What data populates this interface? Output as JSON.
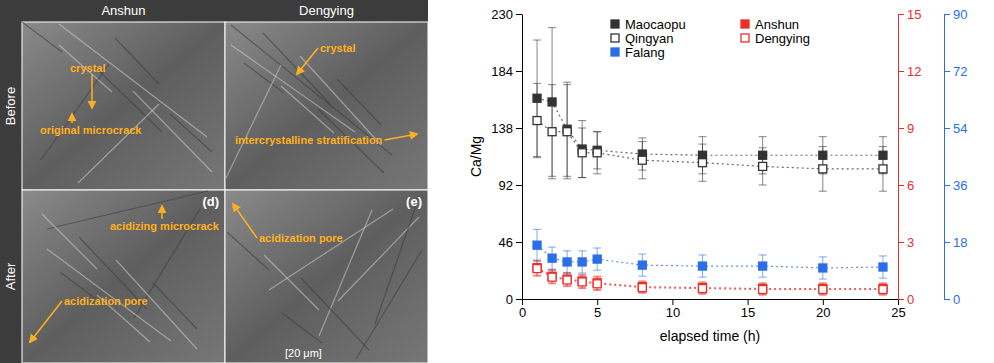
{
  "micrographs": {
    "columns": [
      "Anshun",
      "Dengying"
    ],
    "rows": [
      "Before",
      "After"
    ],
    "panels": [
      {
        "annotations": [
          "crystal",
          "original microcrack"
        ]
      },
      {
        "annotations": [
          "crystal",
          "intercrystalline stratification"
        ]
      },
      {
        "label": "(d)",
        "annotations": [
          "acidizing microcrack",
          "acidization pore"
        ]
      },
      {
        "label": "(e)",
        "annotations": [
          "acidization pore"
        ],
        "scale_bar": "[20 μm]"
      }
    ]
  },
  "chart_data": {
    "type": "line",
    "x_label": "elapsed time (h)",
    "y_label": "Ca/Mg",
    "x": [
      1,
      2,
      3,
      4,
      5,
      8,
      12,
      16,
      20,
      24
    ],
    "xlim": [
      0,
      25
    ],
    "xticks": [
      0,
      5,
      10,
      15,
      20,
      25
    ],
    "ylim": [
      0,
      230
    ],
    "yticks": [
      0,
      46,
      92,
      138,
      184,
      230
    ],
    "y2lim": [
      0,
      15
    ],
    "y2ticks": [
      0,
      3,
      6,
      9,
      12,
      15
    ],
    "y3lim": [
      0,
      90
    ],
    "y3ticks": [
      0,
      18,
      36,
      54,
      72,
      90
    ],
    "legend": "top",
    "series": [
      {
        "name": "Maocaopu",
        "color": "#333333",
        "marker": "square",
        "line_style": "dotted",
        "axis": "y",
        "values": [
          162,
          159,
          137,
          121,
          120,
          117,
          116,
          116,
          116,
          116
        ],
        "errors": [
          47,
          60,
          38,
          23,
          15,
          13,
          15,
          15,
          15,
          15
        ]
      },
      {
        "name": "Qingyan",
        "color": "#333333",
        "marker": "open-square",
        "line_style": "dotted",
        "axis": "y",
        "values": [
          144,
          135,
          135,
          118,
          118,
          112,
          110,
          107,
          105,
          105
        ],
        "errors": [
          30,
          38,
          38,
          20,
          17,
          15,
          15,
          15,
          18,
          18
        ]
      },
      {
        "name": "Anshun",
        "color": "#e8302a",
        "marker": "square",
        "line_style": "dotted",
        "axis": "y2",
        "values": [
          1.65,
          1.2,
          1.05,
          0.95,
          0.85,
          0.65,
          0.6,
          0.55,
          0.55,
          0.55
        ],
        "errors": [
          0.4,
          0.35,
          0.35,
          0.35,
          0.35,
          0.3,
          0.3,
          0.3,
          0.3,
          0.3
        ]
      },
      {
        "name": "Dengying",
        "color": "#e8302a",
        "marker": "open-square",
        "line_style": "dotted",
        "axis": "y2",
        "values": [
          1.6,
          1.15,
          1.0,
          0.9,
          0.8,
          0.6,
          0.55,
          0.5,
          0.5,
          0.5
        ],
        "errors": [
          0.4,
          0.35,
          0.35,
          0.35,
          0.35,
          0.3,
          0.3,
          0.3,
          0.3,
          0.3
        ]
      },
      {
        "name": "Falang",
        "color": "#2a6ee8",
        "marker": "square",
        "line_style": "dotted",
        "axis": "y3",
        "values": [
          17,
          12.9,
          11.7,
          11.7,
          12.6,
          10.7,
          10.4,
          10.4,
          9.8,
          10.1
        ],
        "errors": [
          5,
          3.5,
          3.5,
          3.5,
          3.5,
          3.5,
          3.5,
          3.5,
          3.5,
          3.5
        ]
      }
    ]
  }
}
